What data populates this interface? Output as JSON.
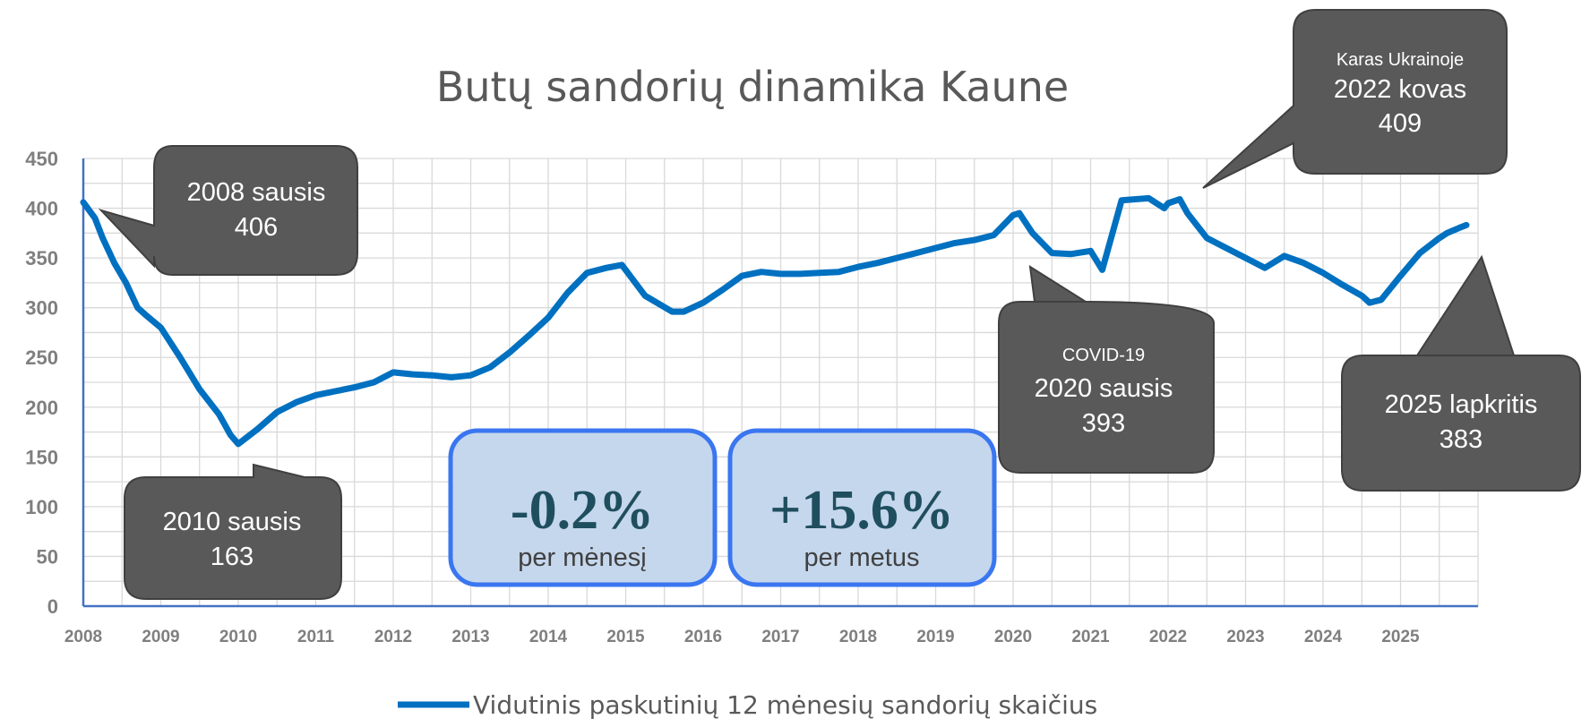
{
  "chart_data": {
    "type": "line",
    "title": "Butų sandorių dinamika Kaune",
    "xlabel": "",
    "ylabel": "",
    "ylim": [
      0,
      450
    ],
    "yticks": [
      0,
      50,
      100,
      150,
      200,
      250,
      300,
      350,
      400,
      450
    ],
    "xlim": [
      2008,
      2026
    ],
    "xticks": [
      "2008",
      "2009",
      "2010",
      "2011",
      "2012",
      "2013",
      "2014",
      "2015",
      "2016",
      "2017",
      "2018",
      "2019",
      "2020",
      "2021",
      "2022",
      "2023",
      "2024",
      "2025"
    ],
    "grid": true,
    "legend_position": "bottom",
    "series": [
      {
        "name": "Vidutinis paskutinių 12 mėnesių sandorių skaičius",
        "color": "#0070c0",
        "x": [
          2008.0,
          2008.15,
          2008.25,
          2008.4,
          2008.55,
          2008.7,
          2008.8,
          2009.0,
          2009.25,
          2009.5,
          2009.75,
          2009.9,
          2010.0,
          2010.25,
          2010.5,
          2010.75,
          2011.0,
          2011.25,
          2011.5,
          2011.75,
          2012.0,
          2012.25,
          2012.5,
          2012.75,
          2013.0,
          2013.25,
          2013.5,
          2013.75,
          2014.0,
          2014.25,
          2014.5,
          2014.75,
          2014.95,
          2015.25,
          2015.6,
          2015.75,
          2016.0,
          2016.25,
          2016.5,
          2016.75,
          2017.0,
          2017.25,
          2017.5,
          2017.75,
          2018.0,
          2018.25,
          2018.5,
          2018.75,
          2019.0,
          2019.25,
          2019.5,
          2019.75,
          2020.0,
          2020.08,
          2020.25,
          2020.5,
          2020.75,
          2021.0,
          2021.15,
          2021.4,
          2021.75,
          2021.95,
          2022.0,
          2022.15,
          2022.25,
          2022.5,
          2022.75,
          2023.0,
          2023.25,
          2023.5,
          2023.75,
          2024.0,
          2024.25,
          2024.5,
          2024.6,
          2024.75,
          2025.0,
          2025.25,
          2025.5,
          2025.6,
          2025.75,
          2025.85
        ],
        "values": [
          406,
          390,
          370,
          345,
          325,
          300,
          293,
          280,
          250,
          218,
          193,
          172,
          163,
          178,
          195,
          205,
          212,
          216,
          220,
          225,
          235,
          233,
          232,
          230,
          232,
          240,
          255,
          272,
          290,
          315,
          335,
          340,
          343,
          312,
          296,
          296,
          305,
          318,
          332,
          336,
          334,
          334,
          335,
          336,
          341,
          345,
          350,
          355,
          360,
          365,
          368,
          373,
          393,
          395,
          375,
          355,
          354,
          357,
          338,
          408,
          410,
          400,
          405,
          409,
          395,
          370,
          360,
          350,
          340,
          352,
          345,
          335,
          323,
          312,
          305,
          308,
          332,
          355,
          370,
          375,
          380,
          383
        ]
      }
    ],
    "callouts": [
      {
        "line1": "2008 sausis",
        "line2": "406"
      },
      {
        "line1": "2010 sausis",
        "line2": "163"
      },
      {
        "small": "COVID-19",
        "line1": "2020 sausis",
        "line2": "393"
      },
      {
        "small": "Karas Ukrainoje",
        "line1": "2022 kovas",
        "line2": "409"
      },
      {
        "line1": "2025 lapkritis",
        "line2": "383"
      }
    ],
    "stats": [
      {
        "value": "-0.2%",
        "caption": "per mėnesį"
      },
      {
        "value": "+15.6%",
        "caption": "per metus"
      }
    ]
  }
}
